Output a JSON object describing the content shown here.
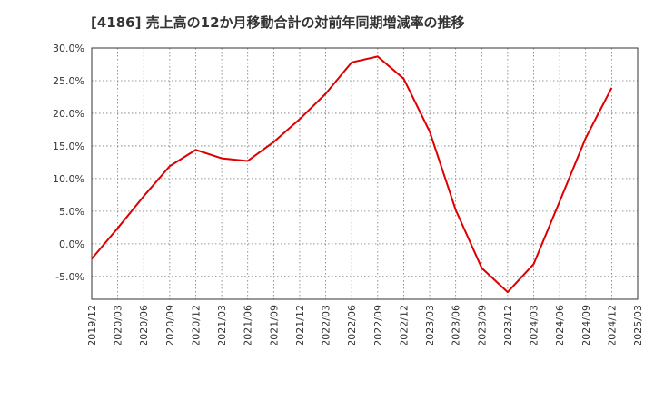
{
  "chart_data": {
    "type": "line",
    "title": "[4186]  売上高の12か月移動合計の対前年同期増減率の推移",
    "xlabel": "",
    "ylabel": "",
    "x": [
      "2019/12",
      "2020/03",
      "2020/06",
      "2020/09",
      "2020/12",
      "2021/03",
      "2021/06",
      "2021/09",
      "2021/12",
      "2022/03",
      "2022/06",
      "2022/09",
      "2022/12",
      "2023/03",
      "2023/06",
      "2023/09",
      "2023/12",
      "2024/03",
      "2024/06",
      "2024/09",
      "2024/12",
      "2025/03"
    ],
    "series": [
      {
        "values": [
          -2.3,
          2.4,
          7.3,
          11.9,
          14.4,
          13.1,
          12.7,
          15.6,
          19.1,
          23.0,
          27.8,
          28.7,
          25.3,
          17.2,
          5.2,
          -3.7,
          -7.4,
          -3.1,
          6.5,
          16.2,
          23.9,
          null
        ]
      }
    ],
    "ylim": [
      -8.5,
      30
    ],
    "yticks": [
      -5,
      0,
      5,
      10,
      15,
      20,
      25,
      30
    ],
    "ytick_labels": [
      "-5.0%",
      "0.0%",
      "5.0%",
      "10.0%",
      "15.0%",
      "20.0%",
      "25.0%",
      "30.0%"
    ],
    "grid": true,
    "line_color": "#dd0000"
  }
}
